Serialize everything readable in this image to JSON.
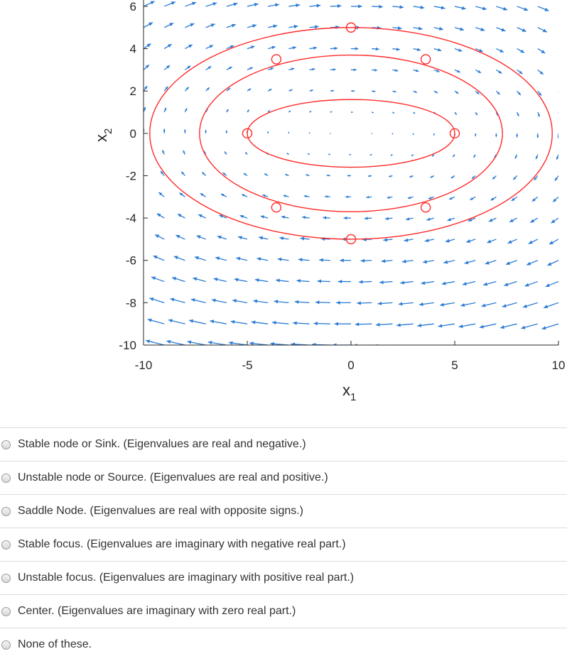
{
  "chart_data": {
    "type": "quiver",
    "xlabel": "x",
    "xlabel_sub": "1",
    "ylabel": "x",
    "ylabel_sub": "2",
    "xlim": [
      -10,
      10
    ],
    "ylim": [
      -10,
      6.3
    ],
    "xticks": [
      "-10",
      "-5",
      "0",
      "5",
      "10"
    ],
    "yticks": [
      "6",
      "4",
      "2",
      "0",
      "-2",
      "-4",
      "-6",
      "-8",
      "-10"
    ],
    "xtick_values": [
      -10,
      -5,
      0,
      5,
      10
    ],
    "ytick_values": [
      6,
      4,
      2,
      0,
      -2,
      -4,
      -6,
      -8,
      -10
    ],
    "grid": false,
    "arrow_color": "#2b7bd4",
    "curve_color": "#ff2a2a",
    "vector_field": {
      "dx": "x2",
      "dy": "-0.5*x1",
      "x_range": [
        -10,
        10,
        1
      ],
      "y_range": [
        -10,
        6,
        1
      ]
    },
    "trajectories": [
      {
        "a": 5.0,
        "b": 1.6,
        "markers": [
          [
            -5,
            0
          ],
          [
            5,
            0
          ]
        ]
      },
      {
        "a": 7.3,
        "b": 3.7,
        "markers": [
          [
            -3.6,
            3.5
          ],
          [
            3.6,
            3.5
          ],
          [
            -3.6,
            -3.5
          ],
          [
            3.6,
            -3.5
          ]
        ]
      },
      {
        "a": 9.7,
        "b": 5.0,
        "markers": [
          [
            0,
            5
          ],
          [
            0,
            -5
          ]
        ]
      }
    ]
  },
  "options": [
    {
      "label": "Stable node or Sink. (Eigenvalues are real and negative.)"
    },
    {
      "label": "Unstable node or Source. (Eigenvalues are real and positive.)"
    },
    {
      "label": "Saddle Node. (Eigenvalues are real with opposite signs.)"
    },
    {
      "label": "Stable focus. (Eigenvalues are imaginary with negative real part.)"
    },
    {
      "label": "Unstable focus. (Eigenvalues are imaginary with positive real part.)"
    },
    {
      "label": "Center. (Eigenvalues are imaginary with zero real part.)"
    },
    {
      "label": "None of these."
    }
  ]
}
